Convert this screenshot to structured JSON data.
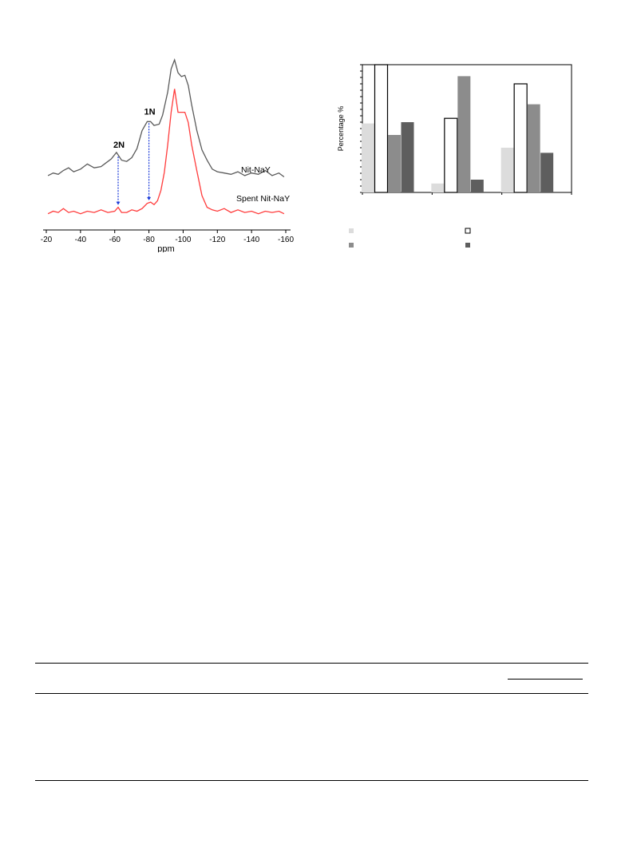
{
  "chart_data": [
    {
      "type": "line",
      "xlabel": "ppm",
      "x_ticks": [
        -20,
        -40,
        -60,
        -80,
        -100,
        -120,
        -140,
        -160
      ],
      "xlim": [
        -20,
        -160
      ],
      "series": [
        {
          "name": "Nit-NaY",
          "color": "#5a5a5a",
          "points": [
            [
              -21,
              0.1
            ],
            [
              -24,
              0.12
            ],
            [
              -27,
              0.11
            ],
            [
              -30,
              0.14
            ],
            [
              -33,
              0.16
            ],
            [
              -36,
              0.13
            ],
            [
              -40,
              0.15
            ],
            [
              -44,
              0.19
            ],
            [
              -48,
              0.16
            ],
            [
              -52,
              0.17
            ],
            [
              -55,
              0.2
            ],
            [
              -58,
              0.23
            ],
            [
              -61,
              0.28
            ],
            [
              -64,
              0.22
            ],
            [
              -67,
              0.21
            ],
            [
              -70,
              0.24
            ],
            [
              -73,
              0.31
            ],
            [
              -76,
              0.45
            ],
            [
              -79,
              0.52
            ],
            [
              -81,
              0.52
            ],
            [
              -83,
              0.49
            ],
            [
              -86,
              0.5
            ],
            [
              -88,
              0.57
            ],
            [
              -91,
              0.75
            ],
            [
              -93,
              0.93
            ],
            [
              -95,
              1.0
            ],
            [
              -97,
              0.9
            ],
            [
              -99,
              0.87
            ],
            [
              -101,
              0.88
            ],
            [
              -103,
              0.8
            ],
            [
              -105,
              0.65
            ],
            [
              -108,
              0.45
            ],
            [
              -111,
              0.3
            ],
            [
              -114,
              0.22
            ],
            [
              -117,
              0.15
            ],
            [
              -120,
              0.13
            ],
            [
              -124,
              0.12
            ],
            [
              -128,
              0.11
            ],
            [
              -132,
              0.13
            ],
            [
              -136,
              0.1
            ],
            [
              -140,
              0.12
            ],
            [
              -144,
              0.11
            ],
            [
              -148,
              0.14
            ],
            [
              -152,
              0.1
            ],
            [
              -156,
              0.12
            ],
            [
              -159,
              0.09
            ]
          ]
        },
        {
          "name": "Spent Nit-NaY",
          "color": "#ff3b3b",
          "points": [
            [
              -21,
              0.02
            ],
            [
              -24,
              0.04
            ],
            [
              -27,
              0.03
            ],
            [
              -30,
              0.06
            ],
            [
              -33,
              0.03
            ],
            [
              -36,
              0.04
            ],
            [
              -40,
              0.02
            ],
            [
              -44,
              0.04
            ],
            [
              -48,
              0.03
            ],
            [
              -52,
              0.05
            ],
            [
              -56,
              0.03
            ],
            [
              -60,
              0.04
            ],
            [
              -62,
              0.07
            ],
            [
              -64,
              0.03
            ],
            [
              -67,
              0.03
            ],
            [
              -70,
              0.05
            ],
            [
              -73,
              0.04
            ],
            [
              -76,
              0.06
            ],
            [
              -79,
              0.1
            ],
            [
              -81,
              0.11
            ],
            [
              -83,
              0.09
            ],
            [
              -85,
              0.12
            ],
            [
              -87,
              0.2
            ],
            [
              -89,
              0.34
            ],
            [
              -91,
              0.55
            ],
            [
              -93,
              0.8
            ],
            [
              -95,
              0.98
            ],
            [
              -97,
              0.8
            ],
            [
              -99,
              0.8
            ],
            [
              -101,
              0.8
            ],
            [
              -103,
              0.72
            ],
            [
              -105,
              0.55
            ],
            [
              -108,
              0.35
            ],
            [
              -111,
              0.16
            ],
            [
              -114,
              0.07
            ],
            [
              -117,
              0.05
            ],
            [
              -120,
              0.04
            ],
            [
              -124,
              0.06
            ],
            [
              -128,
              0.03
            ],
            [
              -132,
              0.05
            ],
            [
              -136,
              0.03
            ],
            [
              -140,
              0.04
            ],
            [
              -144,
              0.02
            ],
            [
              -148,
              0.04
            ],
            [
              -152,
              0.03
            ],
            [
              -156,
              0.04
            ],
            [
              -159,
              0.02
            ]
          ]
        }
      ],
      "annotations": [
        {
          "text": "2N",
          "x": -62
        },
        {
          "text": "1N",
          "x": -80
        }
      ],
      "arrow_color": "#1a3ad8"
    },
    {
      "type": "bar",
      "ylabel": "Percentage %",
      "ylim": [
        0,
        100
      ],
      "n_categories": 3,
      "series": [
        {
          "fill": "#dcdcdc",
          "stroke": "none",
          "values": [
            54,
            7,
            35
          ]
        },
        {
          "fill": "#ffffff",
          "stroke": "#000000",
          "values": [
            100,
            58,
            85
          ]
        },
        {
          "fill": "#8c8c8c",
          "stroke": "none",
          "values": [
            45,
            91,
            69
          ]
        },
        {
          "fill": "#5e5e5e",
          "stroke": "none",
          "values": [
            55,
            10,
            31
          ]
        }
      ]
    }
  ]
}
